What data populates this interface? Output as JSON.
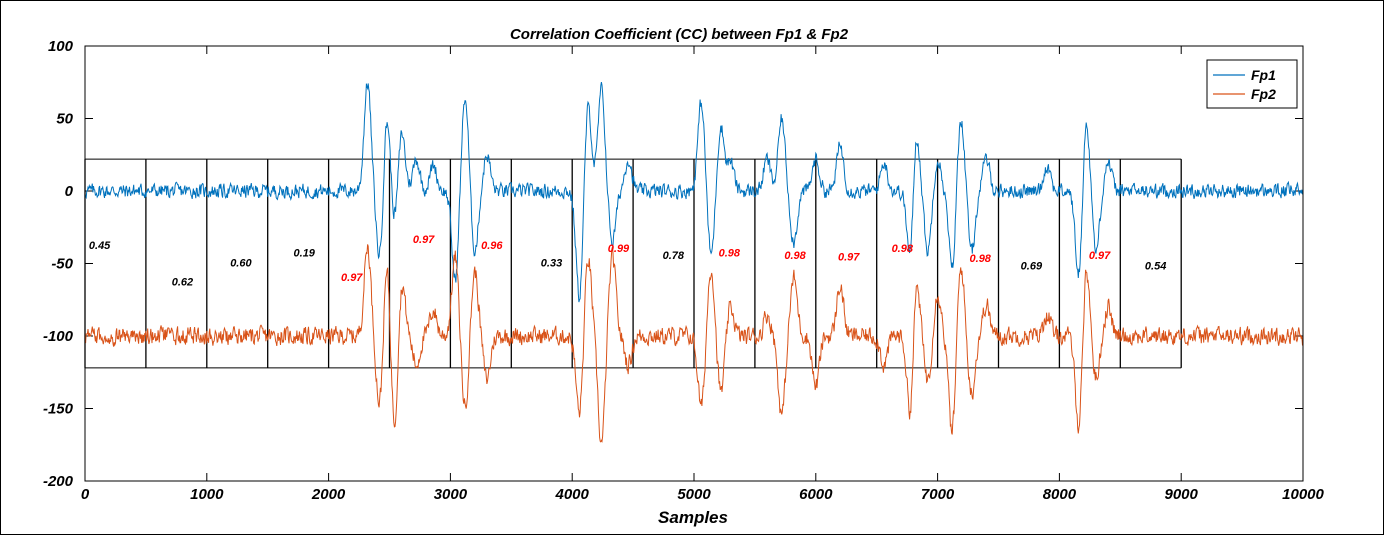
{
  "chart_data": {
    "type": "line",
    "title": "Correlation Coefficient (CC) between Fp1 & Fp2",
    "xlabel": "Samples",
    "ylabel": "",
    "xlim": [
      0,
      10000
    ],
    "ylim": [
      -200,
      100
    ],
    "xticks": [
      0,
      1000,
      2000,
      3000,
      4000,
      5000,
      6000,
      7000,
      8000,
      9000,
      10000
    ],
    "yticks": [
      100,
      50,
      0,
      -50,
      -100,
      -150,
      -200
    ],
    "grid": false,
    "legend": "top-right",
    "series": [
      {
        "name": "Fp1",
        "color": "#0072BD",
        "baseline": 0,
        "noise_amplitude": 4,
        "waveform_peaks": [
          [
            2320,
            75
          ],
          [
            2420,
            -48
          ],
          [
            2480,
            55
          ],
          [
            2540,
            -25
          ],
          [
            2600,
            42
          ],
          [
            2720,
            22
          ],
          [
            2860,
            18
          ],
          [
            3040,
            -62
          ],
          [
            3120,
            66
          ],
          [
            3200,
            -42
          ],
          [
            3300,
            25
          ],
          [
            4060,
            -75
          ],
          [
            4130,
            60
          ],
          [
            4240,
            70
          ],
          [
            4330,
            -35
          ],
          [
            4460,
            22
          ],
          [
            5060,
            62
          ],
          [
            5140,
            -45
          ],
          [
            5220,
            45
          ],
          [
            5300,
            20
          ],
          [
            5600,
            22
          ],
          [
            5720,
            50
          ],
          [
            5820,
            -35
          ],
          [
            6000,
            22
          ],
          [
            6200,
            32
          ],
          [
            6560,
            20
          ],
          [
            6780,
            -58
          ],
          [
            6820,
            52
          ],
          [
            6920,
            -42
          ],
          [
            7000,
            22
          ],
          [
            7120,
            -55
          ],
          [
            7190,
            52
          ],
          [
            7280,
            -42
          ],
          [
            7400,
            22
          ],
          [
            7900,
            18
          ],
          [
            8160,
            -62
          ],
          [
            8220,
            52
          ],
          [
            8300,
            -42
          ],
          [
            8400,
            20
          ]
        ]
      },
      {
        "name": "Fp2",
        "color": "#D95319",
        "baseline": -100,
        "noise_amplitude": 5,
        "waveform_peaks": [
          [
            2320,
            -38
          ],
          [
            2420,
            -150
          ],
          [
            2480,
            -45
          ],
          [
            2540,
            -168
          ],
          [
            2600,
            -60
          ],
          [
            2720,
            -120
          ],
          [
            2860,
            -82
          ],
          [
            3040,
            -45
          ],
          [
            3120,
            -150
          ],
          [
            3200,
            -55
          ],
          [
            3300,
            -130
          ],
          [
            4060,
            -155
          ],
          [
            4130,
            -45
          ],
          [
            4240,
            -175
          ],
          [
            4330,
            -45
          ],
          [
            4460,
            -120
          ],
          [
            5060,
            -150
          ],
          [
            5140,
            -52
          ],
          [
            5220,
            -140
          ],
          [
            5300,
            -80
          ],
          [
            5600,
            -85
          ],
          [
            5720,
            -155
          ],
          [
            5820,
            -60
          ],
          [
            6000,
            -135
          ],
          [
            6200,
            -65
          ],
          [
            6560,
            -120
          ],
          [
            6780,
            -165
          ],
          [
            6820,
            -50
          ],
          [
            6920,
            -130
          ],
          [
            7000,
            -70
          ],
          [
            7120,
            -168
          ],
          [
            7190,
            -50
          ],
          [
            7280,
            -140
          ],
          [
            7400,
            -78
          ],
          [
            7900,
            -85
          ],
          [
            8160,
            -165
          ],
          [
            8220,
            -50
          ],
          [
            8300,
            -130
          ],
          [
            8400,
            -80
          ]
        ]
      }
    ],
    "windows": {
      "boundaries": [
        0,
        500,
        1000,
        1500,
        2000,
        2500,
        3000,
        3500,
        4000,
        4500,
        5000,
        5500,
        6000,
        6500,
        7000,
        7500,
        8000,
        8500,
        9000
      ],
      "y_range": [
        -122,
        22
      ]
    },
    "annotations": [
      {
        "text": "0.45",
        "x": 120,
        "y": -40,
        "color": "#000000"
      },
      {
        "text": "0.62",
        "x": 800,
        "y": -65,
        "color": "#000000"
      },
      {
        "text": "0.60",
        "x": 1280,
        "y": -52,
        "color": "#000000"
      },
      {
        "text": "0.19",
        "x": 1800,
        "y": -45,
        "color": "#000000"
      },
      {
        "text": "0.97",
        "x": 2190,
        "y": -62,
        "color": "#ff0000"
      },
      {
        "text": "0.97",
        "x": 2780,
        "y": -36,
        "color": "#ff0000"
      },
      {
        "text": "0.96",
        "x": 3340,
        "y": -40,
        "color": "#ff0000"
      },
      {
        "text": "0.33",
        "x": 3830,
        "y": -52,
        "color": "#000000"
      },
      {
        "text": "0.99",
        "x": 4380,
        "y": -42,
        "color": "#ff0000"
      },
      {
        "text": "0.78",
        "x": 4830,
        "y": -47,
        "color": "#000000"
      },
      {
        "text": "0.98",
        "x": 5290,
        "y": -45,
        "color": "#ff0000"
      },
      {
        "text": "0.98",
        "x": 5830,
        "y": -47,
        "color": "#ff0000"
      },
      {
        "text": "0.97",
        "x": 6270,
        "y": -48,
        "color": "#ff0000"
      },
      {
        "text": "0.98",
        "x": 6710,
        "y": -42,
        "color": "#ff0000"
      },
      {
        "text": "0.98",
        "x": 7350,
        "y": -49,
        "color": "#ff0000"
      },
      {
        "text": "0.69",
        "x": 7770,
        "y": -54,
        "color": "#000000"
      },
      {
        "text": "0.97",
        "x": 8330,
        "y": -47,
        "color": "#ff0000"
      },
      {
        "text": "0.54",
        "x": 8790,
        "y": -54,
        "color": "#000000"
      }
    ]
  }
}
